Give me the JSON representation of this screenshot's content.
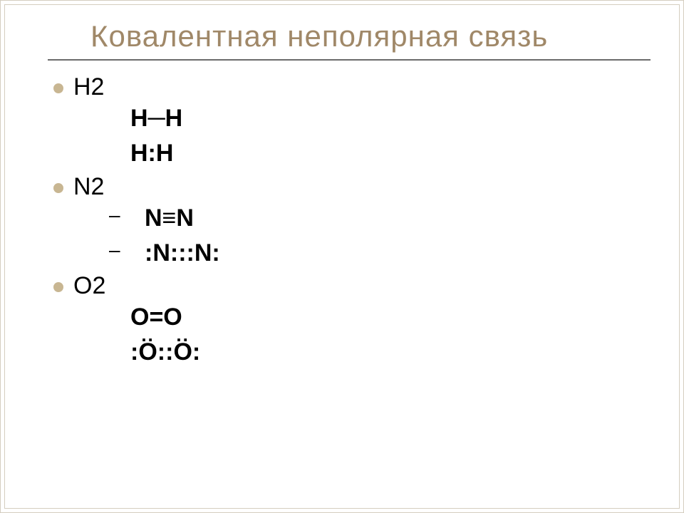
{
  "title": "Ковалентная неполярная связь",
  "colors": {
    "title_color": "#a08868",
    "bullet_color": "#c8b692",
    "rule_color": "#6b6b6b",
    "text_color": "#000000",
    "background": "#ffffff",
    "frame_border": "#d4cdbf"
  },
  "typography": {
    "title_fontsize": 42,
    "body_fontsize": 34,
    "font_family": "Arial"
  },
  "items": [
    {
      "label": "H2",
      "sub_style": "indent",
      "lines": [
        "H─H",
        "H:H"
      ]
    },
    {
      "label": "N2",
      "sub_style": "dash",
      "lines": [
        "N≡N",
        ":N:::N:"
      ]
    },
    {
      "label": "O2",
      "sub_style": "indent",
      "lines": [
        "O=O",
        ":Ö::Ö:"
      ],
      "dots_over_indices": [
        1
      ]
    }
  ]
}
